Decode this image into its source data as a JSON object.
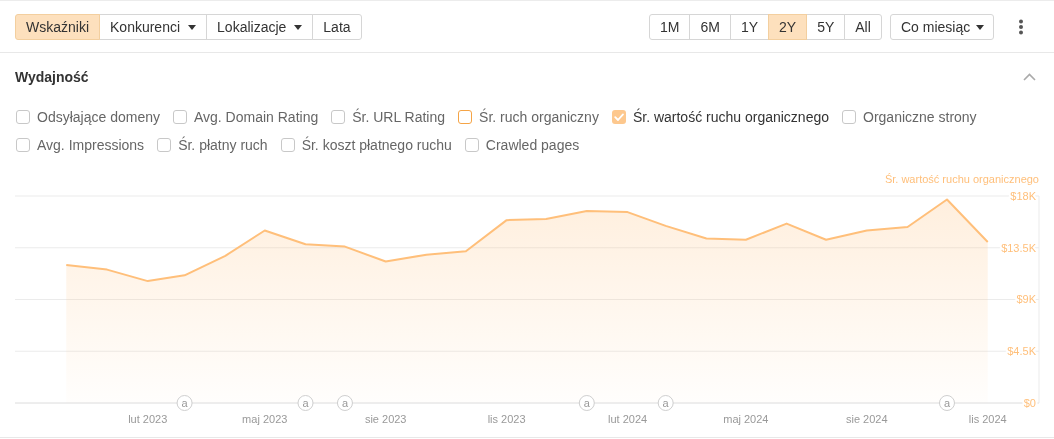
{
  "chart_data": {
    "type": "area",
    "title": "Wydajność",
    "x": [
      "2022-12",
      "2023-01",
      "2023-02",
      "2023-03",
      "2023-04",
      "2023-05",
      "2023-06",
      "2023-07",
      "2023-08",
      "2023-09",
      "2023-10",
      "2023-11",
      "2023-12",
      "2024-01",
      "2024-02",
      "2024-03",
      "2024-04",
      "2024-05",
      "2024-06",
      "2024-07",
      "2024-08",
      "2024-09",
      "2024-10",
      "2024-11"
    ],
    "series": [
      {
        "name": "Śr. wartość ruchu organicznego",
        "color": "#ffbf7a",
        "values": [
          12000,
          11600,
          10600,
          11100,
          12800,
          15000,
          13800,
          13600,
          12300,
          12900,
          13200,
          15900,
          16000,
          16700,
          16600,
          15400,
          14300,
          14200,
          15600,
          14200,
          15000,
          15300,
          17700,
          14000
        ]
      }
    ],
    "xlim": [
      "2022-10-23",
      "2024-12-10"
    ],
    "xticks": [
      {
        "value": "2023-02",
        "label": "lut 2023"
      },
      {
        "value": "2023-05",
        "label": "maj 2023"
      },
      {
        "value": "2023-08",
        "label": "sie 2023"
      },
      {
        "value": "2023-11",
        "label": "lis 2023"
      },
      {
        "value": "2024-02",
        "label": "lut 2024"
      },
      {
        "value": "2024-05",
        "label": "maj 2024"
      },
      {
        "value": "2024-08",
        "label": "sie 2024"
      },
      {
        "value": "2024-11",
        "label": "lis 2024"
      }
    ],
    "ylim": [
      0,
      18000
    ],
    "yticks": [
      {
        "value": 0,
        "label": "$0"
      },
      {
        "value": 4500,
        "label": "$4.5K"
      },
      {
        "value": 9000,
        "label": "$9K"
      },
      {
        "value": 13500,
        "label": "$13.5K"
      },
      {
        "value": 18000,
        "label": "$18K"
      }
    ],
    "grid": "y",
    "legend": "top right",
    "annotations": [
      "Wskaźniki",
      "Konkurenci",
      "Lokalizacje",
      "Lata",
      "1M",
      "6M",
      "1Y",
      "2Y",
      "5Y",
      "All",
      "Co miesiąc",
      "Odsyłające domeny",
      "Avg. Domain Rating",
      "Śr. URL Rating",
      "Śr. ruch organiczny",
      "Śr. wartość ruchu organicznego",
      "Organiczne strony",
      "Avg. Impressions",
      "Śr. płatny ruch",
      "Śr. koszt płatnego ruchu",
      "Crawled pages",
      {
        "text": "a",
        "x": "2023-03"
      },
      {
        "text": "a",
        "x": "2023-06"
      },
      {
        "text": "a",
        "x": "2023-07"
      },
      {
        "text": "a",
        "x": "2024-01"
      },
      {
        "text": "a",
        "x": "2024-03"
      },
      {
        "text": "a",
        "x": "2024-10"
      }
    ]
  }
}
